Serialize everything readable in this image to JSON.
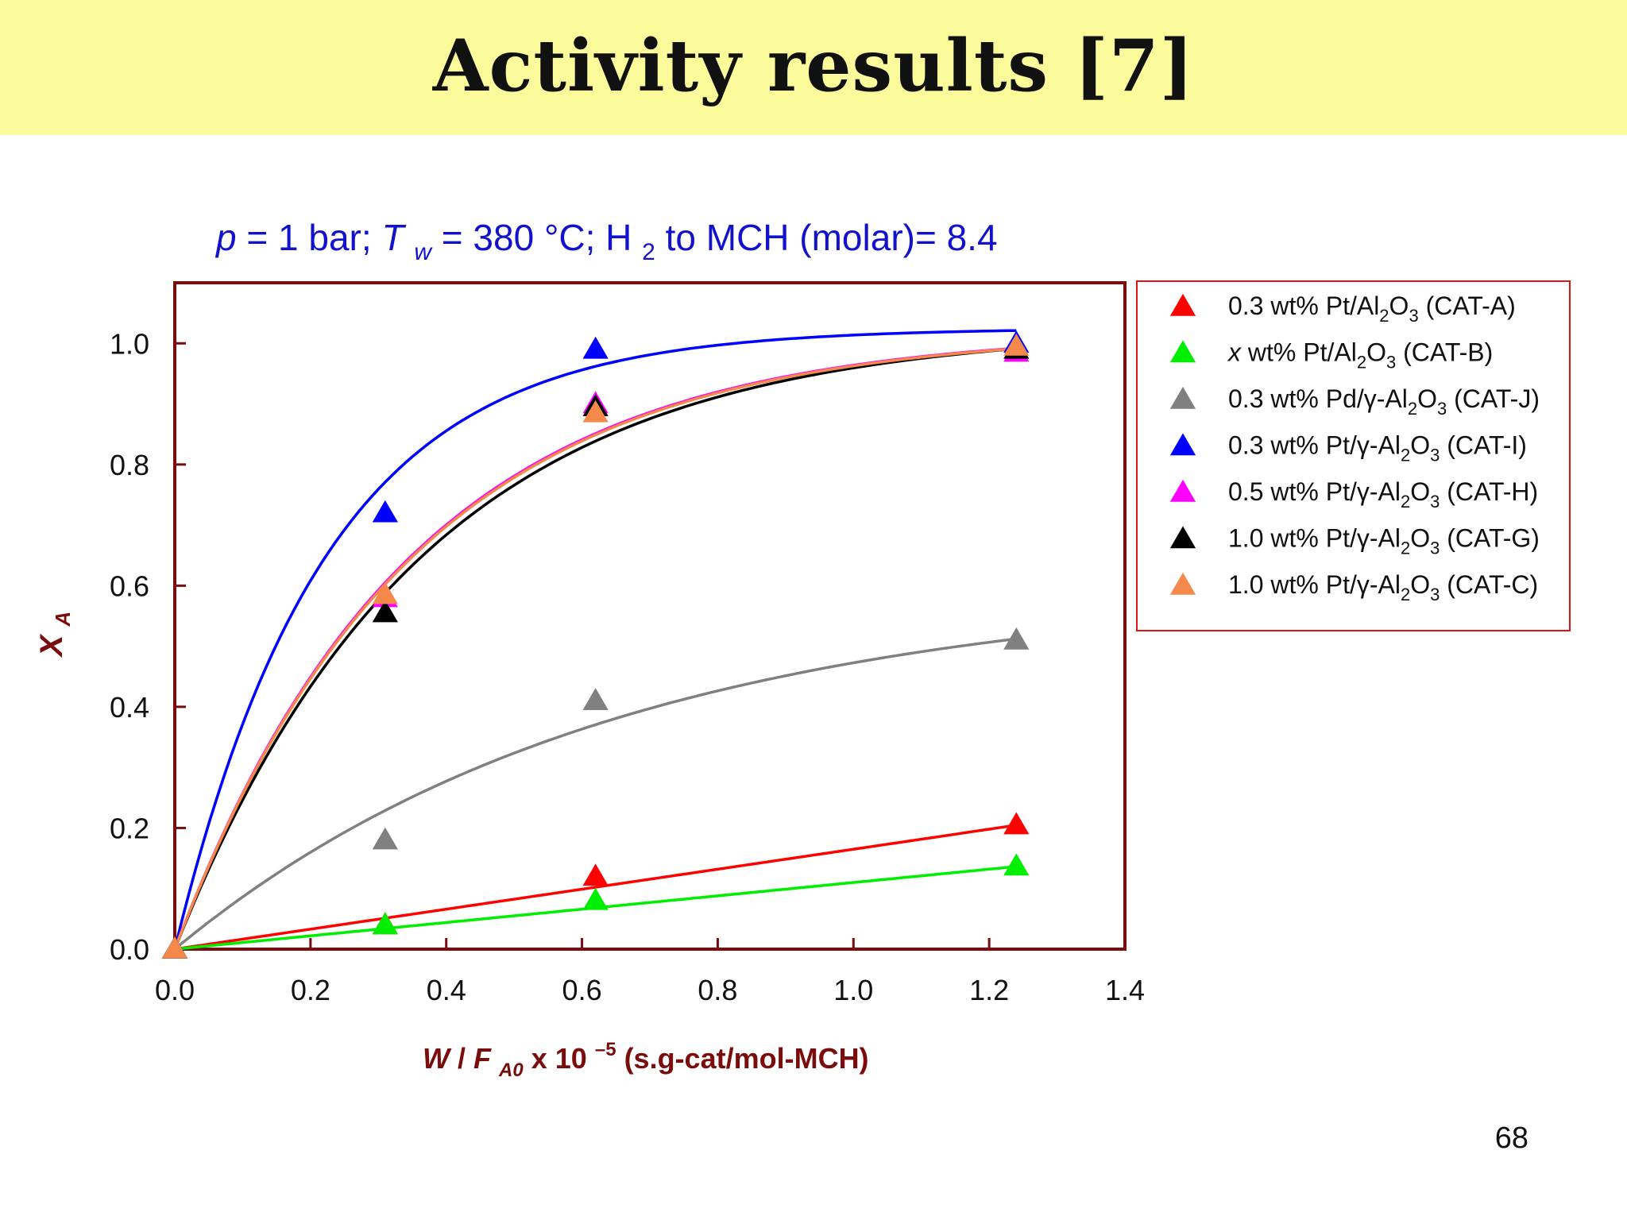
{
  "slide": {
    "title": "Activity results [7]",
    "page_number": "68"
  },
  "colors": {
    "title_bg": "#fbfb9c",
    "frame": "#7a0c0c",
    "axis_label": "#7a0c0c",
    "conditions": "#1212cc",
    "legend_border": "#e01414"
  },
  "chart_data": {
    "type": "scatter",
    "title": {
      "p": "p",
      "p_eq": " = 1 bar; ",
      "T": "T",
      "T_sub": "w",
      "T_eq": " = 380 °C; H",
      "H_sub": "2",
      "rest": " to MCH (molar)= 8.4"
    },
    "xlabel": {
      "W": "W",
      "slash": "/",
      "F": "F",
      "F_sub": "A0",
      "x10": " x 10",
      "exp": "–5",
      "units": " (s.g-cat/mol-MCH)"
    },
    "ylabel": {
      "X": "X",
      "sub": "A"
    },
    "xlim": [
      0,
      1.4
    ],
    "ylim": [
      0,
      1.1
    ],
    "x_ticks": [
      "0.0",
      "0.2",
      "0.4",
      "0.6",
      "0.8",
      "1.0",
      "1.2",
      "1.4"
    ],
    "y_ticks": [
      "0.0",
      "0.2",
      "0.4",
      "0.6",
      "0.8",
      "1.0"
    ],
    "legend_position": "right",
    "series": [
      {
        "name": "0.3 wt% Pt/Al2O3 (CAT-A)",
        "color": "#ff0000",
        "x": [
          0,
          0.31,
          0.62,
          1.24
        ],
        "y": [
          0.0,
          0.04,
          0.12,
          0.205
        ],
        "fit": {
          "type": "linear",
          "slope": 0.165
        },
        "legend": {
          "pre": "0.3 wt% Pt/Al",
          "s1": "2",
          "mid": "O",
          "s2": "3",
          "post": " (CAT-A)"
        }
      },
      {
        "name": "x wt% Pt/Al2O3 (CAT-B)",
        "color": "#00ee00",
        "x": [
          0,
          0.31,
          0.62,
          1.24
        ],
        "y": [
          0.0,
          0.04,
          0.08,
          0.137
        ],
        "fit": {
          "type": "linear",
          "slope": 0.11
        },
        "legend": {
          "ital": "x",
          "pre": " wt% Pt/Al",
          "s1": "2",
          "mid": "O",
          "s2": "3",
          "post": " (CAT-B)"
        }
      },
      {
        "name": "0.3 wt% Pd/γ-Al2O3 (CAT-J)",
        "color": "#808080",
        "x": [
          0,
          0.31,
          0.62,
          1.24
        ],
        "y": [
          0.0,
          0.18,
          0.41,
          0.51
        ],
        "fit": {
          "type": "exp",
          "a": 0.6,
          "k": 1.55
        },
        "legend": {
          "pre": "0.3 wt% Pd/γ-Al",
          "s1": "2",
          "mid": "O",
          "s2": "3",
          "post": " (CAT-J)"
        }
      },
      {
        "name": "0.3 wt% Pt/γ-Al2O3 (CAT-I)",
        "color": "#0000ff",
        "x": [
          0,
          0.31,
          0.62,
          1.24
        ],
        "y": [
          0.0,
          0.72,
          0.99,
          1.0
        ],
        "fit": {
          "type": "exp",
          "a": 1.025,
          "k": 4.5
        },
        "legend": {
          "pre": "0.3 wt% Pt/γ-Al",
          "s1": "2",
          "mid": "O",
          "s2": "3",
          "post": " (CAT-I)"
        }
      },
      {
        "name": "0.5 wt% Pt/γ-Al2O3 (CAT-H)",
        "color": "#ff00ff",
        "x": [
          0,
          0.31,
          0.62,
          1.24
        ],
        "y": [
          0.0,
          0.58,
          0.9,
          0.985
        ],
        "fit": {
          "type": "exp",
          "a": 1.02,
          "k": 2.9
        },
        "legend": {
          "pre": "0.5 wt% Pt/γ-Al",
          "s1": "2",
          "mid": "O",
          "s2": "3",
          "post": " (CAT-H)"
        }
      },
      {
        "name": "1.0 wt% Pt/γ-Al2O3 (CAT-G)",
        "color": "#000000",
        "x": [
          0,
          0.31,
          0.62,
          1.24
        ],
        "y": [
          0.0,
          0.555,
          0.895,
          0.99
        ],
        "fit": {
          "type": "exp",
          "a": 1.025,
          "k": 2.75
        },
        "legend": {
          "pre": "1.0 wt% Pt/γ-Al",
          "s1": "2",
          "mid": "O",
          "s2": "3",
          "post": " (CAT-G)"
        }
      },
      {
        "name": "1.0 wt% Pt/γ-Al2O3 (CAT-C)",
        "color": "#f4894b",
        "x": [
          0,
          0.31,
          0.62,
          1.24
        ],
        "y": [
          0.0,
          0.585,
          0.885,
          0.995
        ],
        "fit": {
          "type": "exp",
          "a": 1.02,
          "k": 2.88
        },
        "legend": {
          "pre": "1.0 wt% Pt/γ-Al",
          "s1": "2",
          "mid": "O",
          "s2": "3",
          "post": " (CAT-C)"
        }
      }
    ]
  }
}
